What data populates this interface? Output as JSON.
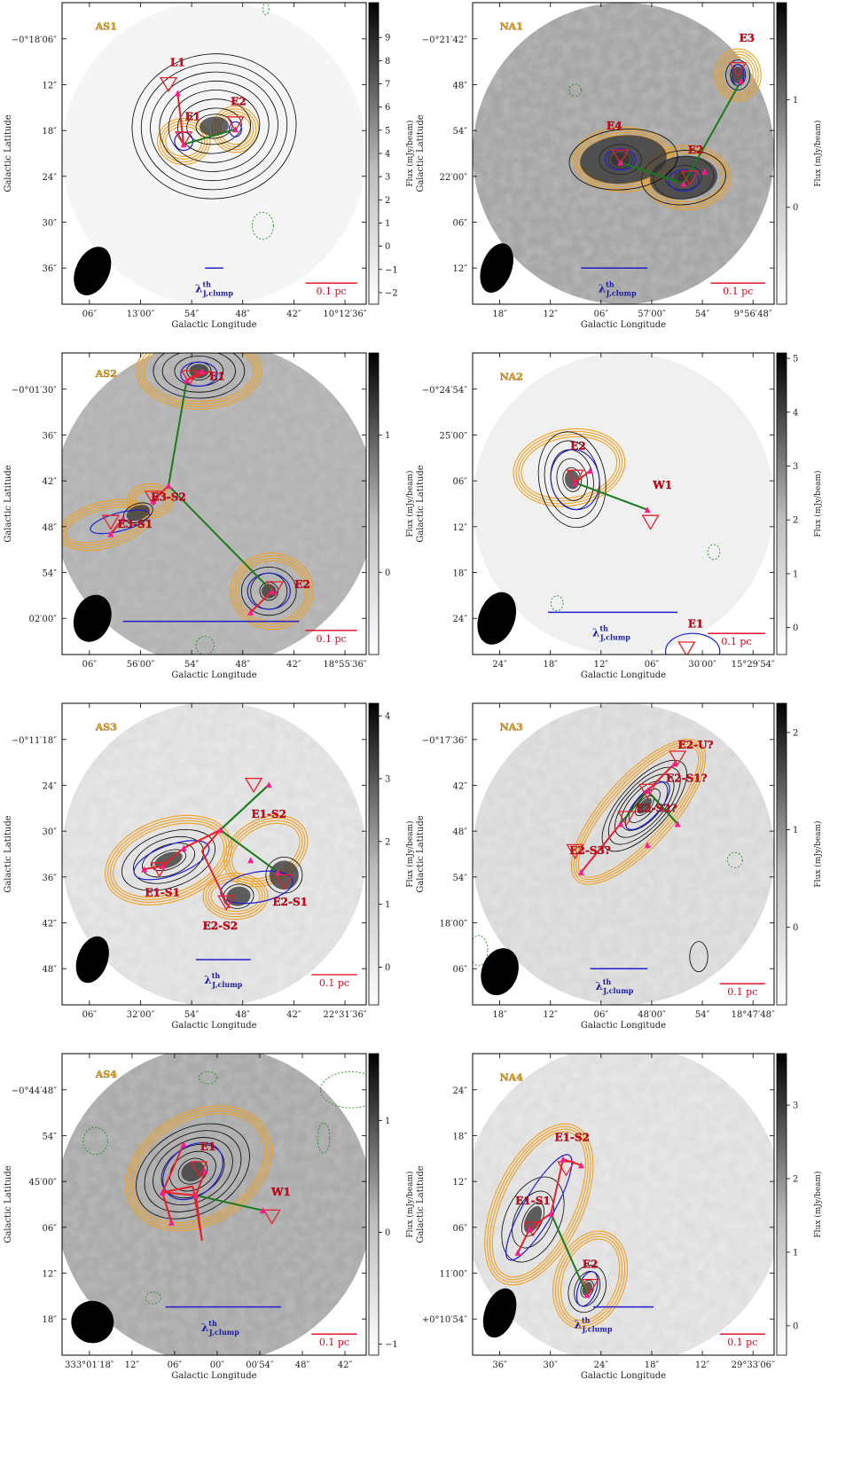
{
  "figure": {
    "panels": [
      {
        "id": "AS1",
        "label": "AS1",
        "xticks": [
          "06″",
          "13′00″",
          "54″",
          "48″",
          "42″",
          "10°12′36″"
        ],
        "yticks": [
          "−0°18′06″",
          "12″",
          "18″",
          "24″",
          "30″",
          "36″"
        ],
        "xlabel": "Galactic Longitude",
        "ylabel": "Galactic Latitude",
        "colorbar": {
          "label": "Flux (mJy/beam)",
          "ticks": [
            "9",
            "8",
            "7",
            "6",
            "5",
            "4",
            "3",
            "2",
            "1",
            "0",
            "−1",
            "−2"
          ],
          "min": -2.5,
          "max": 10.5
        },
        "cores": [
          {
            "name": "L1"
          },
          {
            "name": "E1"
          },
          {
            "name": "E2"
          }
        ],
        "scalebar": "0.1 pc",
        "lambda": "λ",
        "lambda_sup": "th",
        "lambda_sub": "J,clump"
      },
      {
        "id": "NA1",
        "label": "NA1",
        "xticks": [
          "18″",
          "12″",
          "06″",
          "57′00″",
          "54″",
          "9°56′48″"
        ],
        "yticks": [
          "−0°21′42″",
          "48″",
          "54″",
          "22′00″",
          "06″",
          "12″"
        ],
        "xlabel": "Galactic Longitude",
        "ylabel": "Galactic Latitude",
        "colorbar": {
          "label": "Flux (mJy/beam)",
          "ticks": [
            "1",
            "0"
          ],
          "min": -0.9,
          "max": 1.9
        },
        "cores": [
          {
            "name": "E3"
          },
          {
            "name": "E4"
          },
          {
            "name": "E2"
          },
          {
            "name": "E1"
          }
        ],
        "scalebar": "0.1 pc",
        "lambda": "λ",
        "lambda_sup": "th",
        "lambda_sub": "J,clump"
      },
      {
        "id": "AS2",
        "label": "AS2",
        "xticks": [
          "06″",
          "56′00″",
          "54″",
          "48″",
          "42″",
          "18°55′36″"
        ],
        "yticks": [
          "−0°01′30″",
          "36″",
          "42″",
          "48″",
          "54″",
          "02′00″"
        ],
        "xlabel": "Galactic Longitude",
        "ylabel": "Galactic Latitude",
        "colorbar": {
          "label": "Flux (mJy/beam)",
          "ticks": [
            "1",
            "0"
          ],
          "min": -0.6,
          "max": 1.6
        },
        "cores": [
          {
            "name": "E1"
          },
          {
            "name": "E3-S2"
          },
          {
            "name": "E3-S1"
          },
          {
            "name": "E2"
          }
        ],
        "scalebar": "0.1 pc",
        "lambda": "",
        "lambda_sup": "",
        "lambda_sub": ""
      },
      {
        "id": "NA2",
        "label": "NA2",
        "xticks": [
          "24″",
          "18″",
          "12″",
          "06″",
          "30′00″",
          "15°29′54″"
        ],
        "yticks": [
          "−0°24′54″",
          "25′00″",
          "06″",
          "12″",
          "18″",
          "24″"
        ],
        "xlabel": "Galactic Longitude",
        "ylabel": "Galactic Latitude",
        "colorbar": {
          "label": "Flux (mJy/beam)",
          "ticks": [
            "5",
            "4",
            "3",
            "2",
            "1",
            "0"
          ],
          "min": -0.5,
          "max": 5.1
        },
        "cores": [
          {
            "name": "E2"
          },
          {
            "name": "W1"
          },
          {
            "name": "E1"
          }
        ],
        "scalebar": "0.1 pc",
        "lambda": "λ",
        "lambda_sup": "th",
        "lambda_sub": "J,clump"
      },
      {
        "id": "AS3",
        "label": "AS3",
        "xticks": [
          "06″",
          "32′00″",
          "54″",
          "48″",
          "42″",
          "22°31′36″"
        ],
        "yticks": [
          "−0°11′18″",
          "24″",
          "30″",
          "36″",
          "42″",
          "48″"
        ],
        "xlabel": "Galactic Longitude",
        "ylabel": "Galactic Latitude",
        "colorbar": {
          "label": "Flux (mJy/beam)",
          "ticks": [
            "4",
            "3",
            "2",
            "1",
            "0"
          ],
          "min": -0.6,
          "max": 4.2
        },
        "cores": [
          {
            "name": "E1-S2"
          },
          {
            "name": "E1-S1"
          },
          {
            "name": "E2-S2"
          },
          {
            "name": "E2-S1"
          }
        ],
        "scalebar": "0.1 pc",
        "lambda": "λ",
        "lambda_sup": "th",
        "lambda_sub": "J,clump"
      },
      {
        "id": "NA3",
        "label": "NA3",
        "xticks": [
          "18″",
          "12″",
          "06″",
          "48′00″",
          "54″",
          "18°47′48″"
        ],
        "yticks": [
          "−0°17′36″",
          "42″",
          "48″",
          "54″",
          "18′00″",
          "06″"
        ],
        "xlabel": "Galactic Longitude",
        "ylabel": "Galactic Latitude",
        "colorbar": {
          "label": "Flux (mJy/beam)",
          "ticks": [
            "2",
            "1",
            "0"
          ],
          "min": -0.8,
          "max": 2.3
        },
        "cores": [
          {
            "name": "E2-U?"
          },
          {
            "name": "E2-S1?"
          },
          {
            "name": "E2-S2?"
          },
          {
            "name": "E2-S3?"
          }
        ],
        "scalebar": "0.1 pc",
        "lambda": "λ",
        "lambda_sup": "th",
        "lambda_sub": "J,clump"
      },
      {
        "id": "AS4",
        "label": "AS4",
        "xticks": [
          "333°01′18″",
          "12″",
          "06″",
          "00″",
          "00′54″",
          "48″",
          "42″"
        ],
        "yticks": [
          "−0°44′48″",
          "54″",
          "45′00″",
          "06″",
          "12″",
          "18″"
        ],
        "xlabel": "Galactic Longitude",
        "ylabel": "Galactic Latitude",
        "colorbar": {
          "label": "Flux (mJy/beam)",
          "ticks": [
            "1",
            "0",
            "−1"
          ],
          "min": -1.1,
          "max": 1.6
        },
        "cores": [
          {
            "name": "E1"
          },
          {
            "name": "W1"
          }
        ],
        "scalebar": "0.1 pc",
        "lambda": "λ",
        "lambda_sup": "th",
        "lambda_sub": "J,clump"
      },
      {
        "id": "NA4",
        "label": "NA4",
        "xticks": [
          "36″",
          "30″",
          "24″",
          "18″",
          "12″",
          "29°33′06″"
        ],
        "yticks": [
          "24″",
          "18″",
          "12″",
          "06″",
          "11′00″",
          "+0°10′54″"
        ],
        "xlabel": "Galactic Longitude",
        "ylabel": "Galactic Latitude",
        "colorbar": {
          "label": "Flux (mJy/beam)",
          "ticks": [
            "3",
            "2",
            "1",
            "0"
          ],
          "min": -0.4,
          "max": 3.7
        },
        "cores": [
          {
            "name": "E1-S2"
          },
          {
            "name": "E1-S1"
          },
          {
            "name": "E2"
          }
        ],
        "scalebar": "0.1 pc",
        "lambda": "λ",
        "lambda_sup": "th",
        "lambda_sub": "J,clump"
      }
    ],
    "colors": {
      "contour": "#000000",
      "halo": "#f0a020",
      "ellipse": "#1f1fd0",
      "core_marker": "#e8202a",
      "peak_marker": "#ff1a8c",
      "mst_red": "#e8202a",
      "mst_green": "#1a7a1a",
      "negative_contour": "#2a8a2a",
      "lambda_bar": "#1f1fd0",
      "scalebar": "#e0001b"
    }
  }
}
